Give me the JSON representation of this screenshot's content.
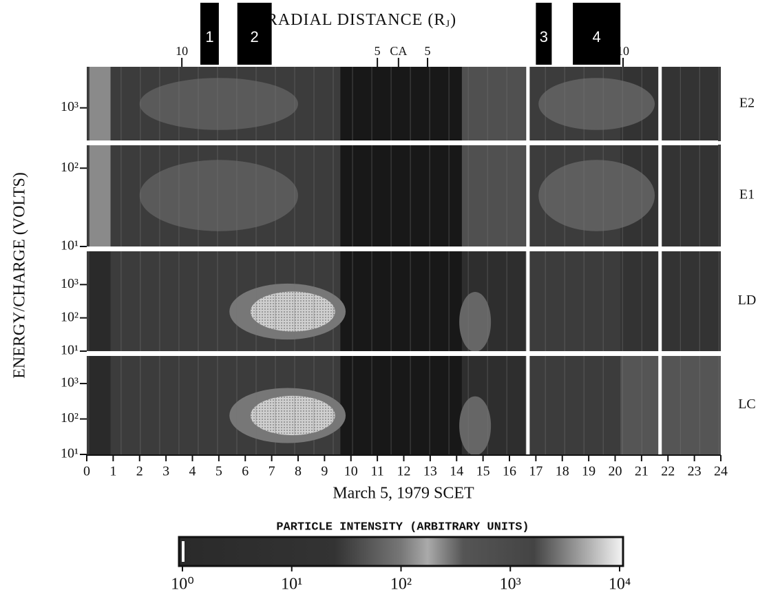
{
  "chart_data": {
    "type": "spectrogram",
    "title_parts": [
      "RADIAL DISTANCE (R",
      "J",
      ")"
    ],
    "xlabel": "March 5, 1979   SCET",
    "ylabel": "ENERGY/CHARGE (VOLTS)",
    "xlim": [
      0,
      24
    ],
    "xticks": [
      0,
      1,
      2,
      3,
      4,
      5,
      6,
      7,
      8,
      9,
      10,
      11,
      12,
      13,
      14,
      15,
      16,
      17,
      18,
      19,
      20,
      21,
      22,
      23,
      24
    ],
    "top_ticks": [
      {
        "value": 3.6,
        "label": "10"
      },
      {
        "value": 11.0,
        "label": "5"
      },
      {
        "value": 11.8,
        "label": "CA"
      },
      {
        "value": 12.9,
        "label": "5"
      },
      {
        "value": 20.3,
        "label": "10"
      }
    ],
    "intervals": [
      {
        "label": "1",
        "start": 4.3,
        "end": 5.0
      },
      {
        "label": "2",
        "start": 5.7,
        "end": 7.0
      },
      {
        "label": "3",
        "start": 17.0,
        "end": 17.6
      },
      {
        "label": "4",
        "start": 18.4,
        "end": 20.2
      }
    ],
    "ylog": true,
    "panels": [
      {
        "name": "E2",
        "ylim": [
          380,
          3300
        ],
        "yticks": [
          {
            "value": 1000,
            "label": "10³"
          }
        ]
      },
      {
        "name": "E1",
        "ylim": [
          10,
          200
        ],
        "yticks": [
          {
            "value": 100,
            "label": "10²"
          },
          {
            "value": 10,
            "label": "10¹"
          }
        ]
      },
      {
        "name": "LD",
        "ylim": [
          10,
          10000
        ],
        "yticks": [
          {
            "value": 1000,
            "label": "10³"
          },
          {
            "value": 100,
            "label": "10²"
          },
          {
            "value": 10,
            "label": "10¹"
          }
        ]
      },
      {
        "name": "LC",
        "ylim": [
          10,
          6000
        ],
        "yticks": [
          {
            "value": 1000,
            "label": "10³"
          },
          {
            "value": 100,
            "label": "10²"
          },
          {
            "value": 10,
            "label": "10¹"
          }
        ]
      }
    ],
    "colorbar": {
      "label": "PARTICLE INTENSITY (ARBITRARY UNITS)",
      "log": true,
      "lim": [
        1,
        10000
      ],
      "ticks": [
        {
          "value": 1,
          "label": "10⁰"
        },
        {
          "value": 10,
          "label": "10¹"
        },
        {
          "value": 100,
          "label": "10²"
        },
        {
          "value": 1000,
          "label": "10³"
        },
        {
          "value": 10000,
          "label": "10⁴"
        }
      ]
    }
  }
}
